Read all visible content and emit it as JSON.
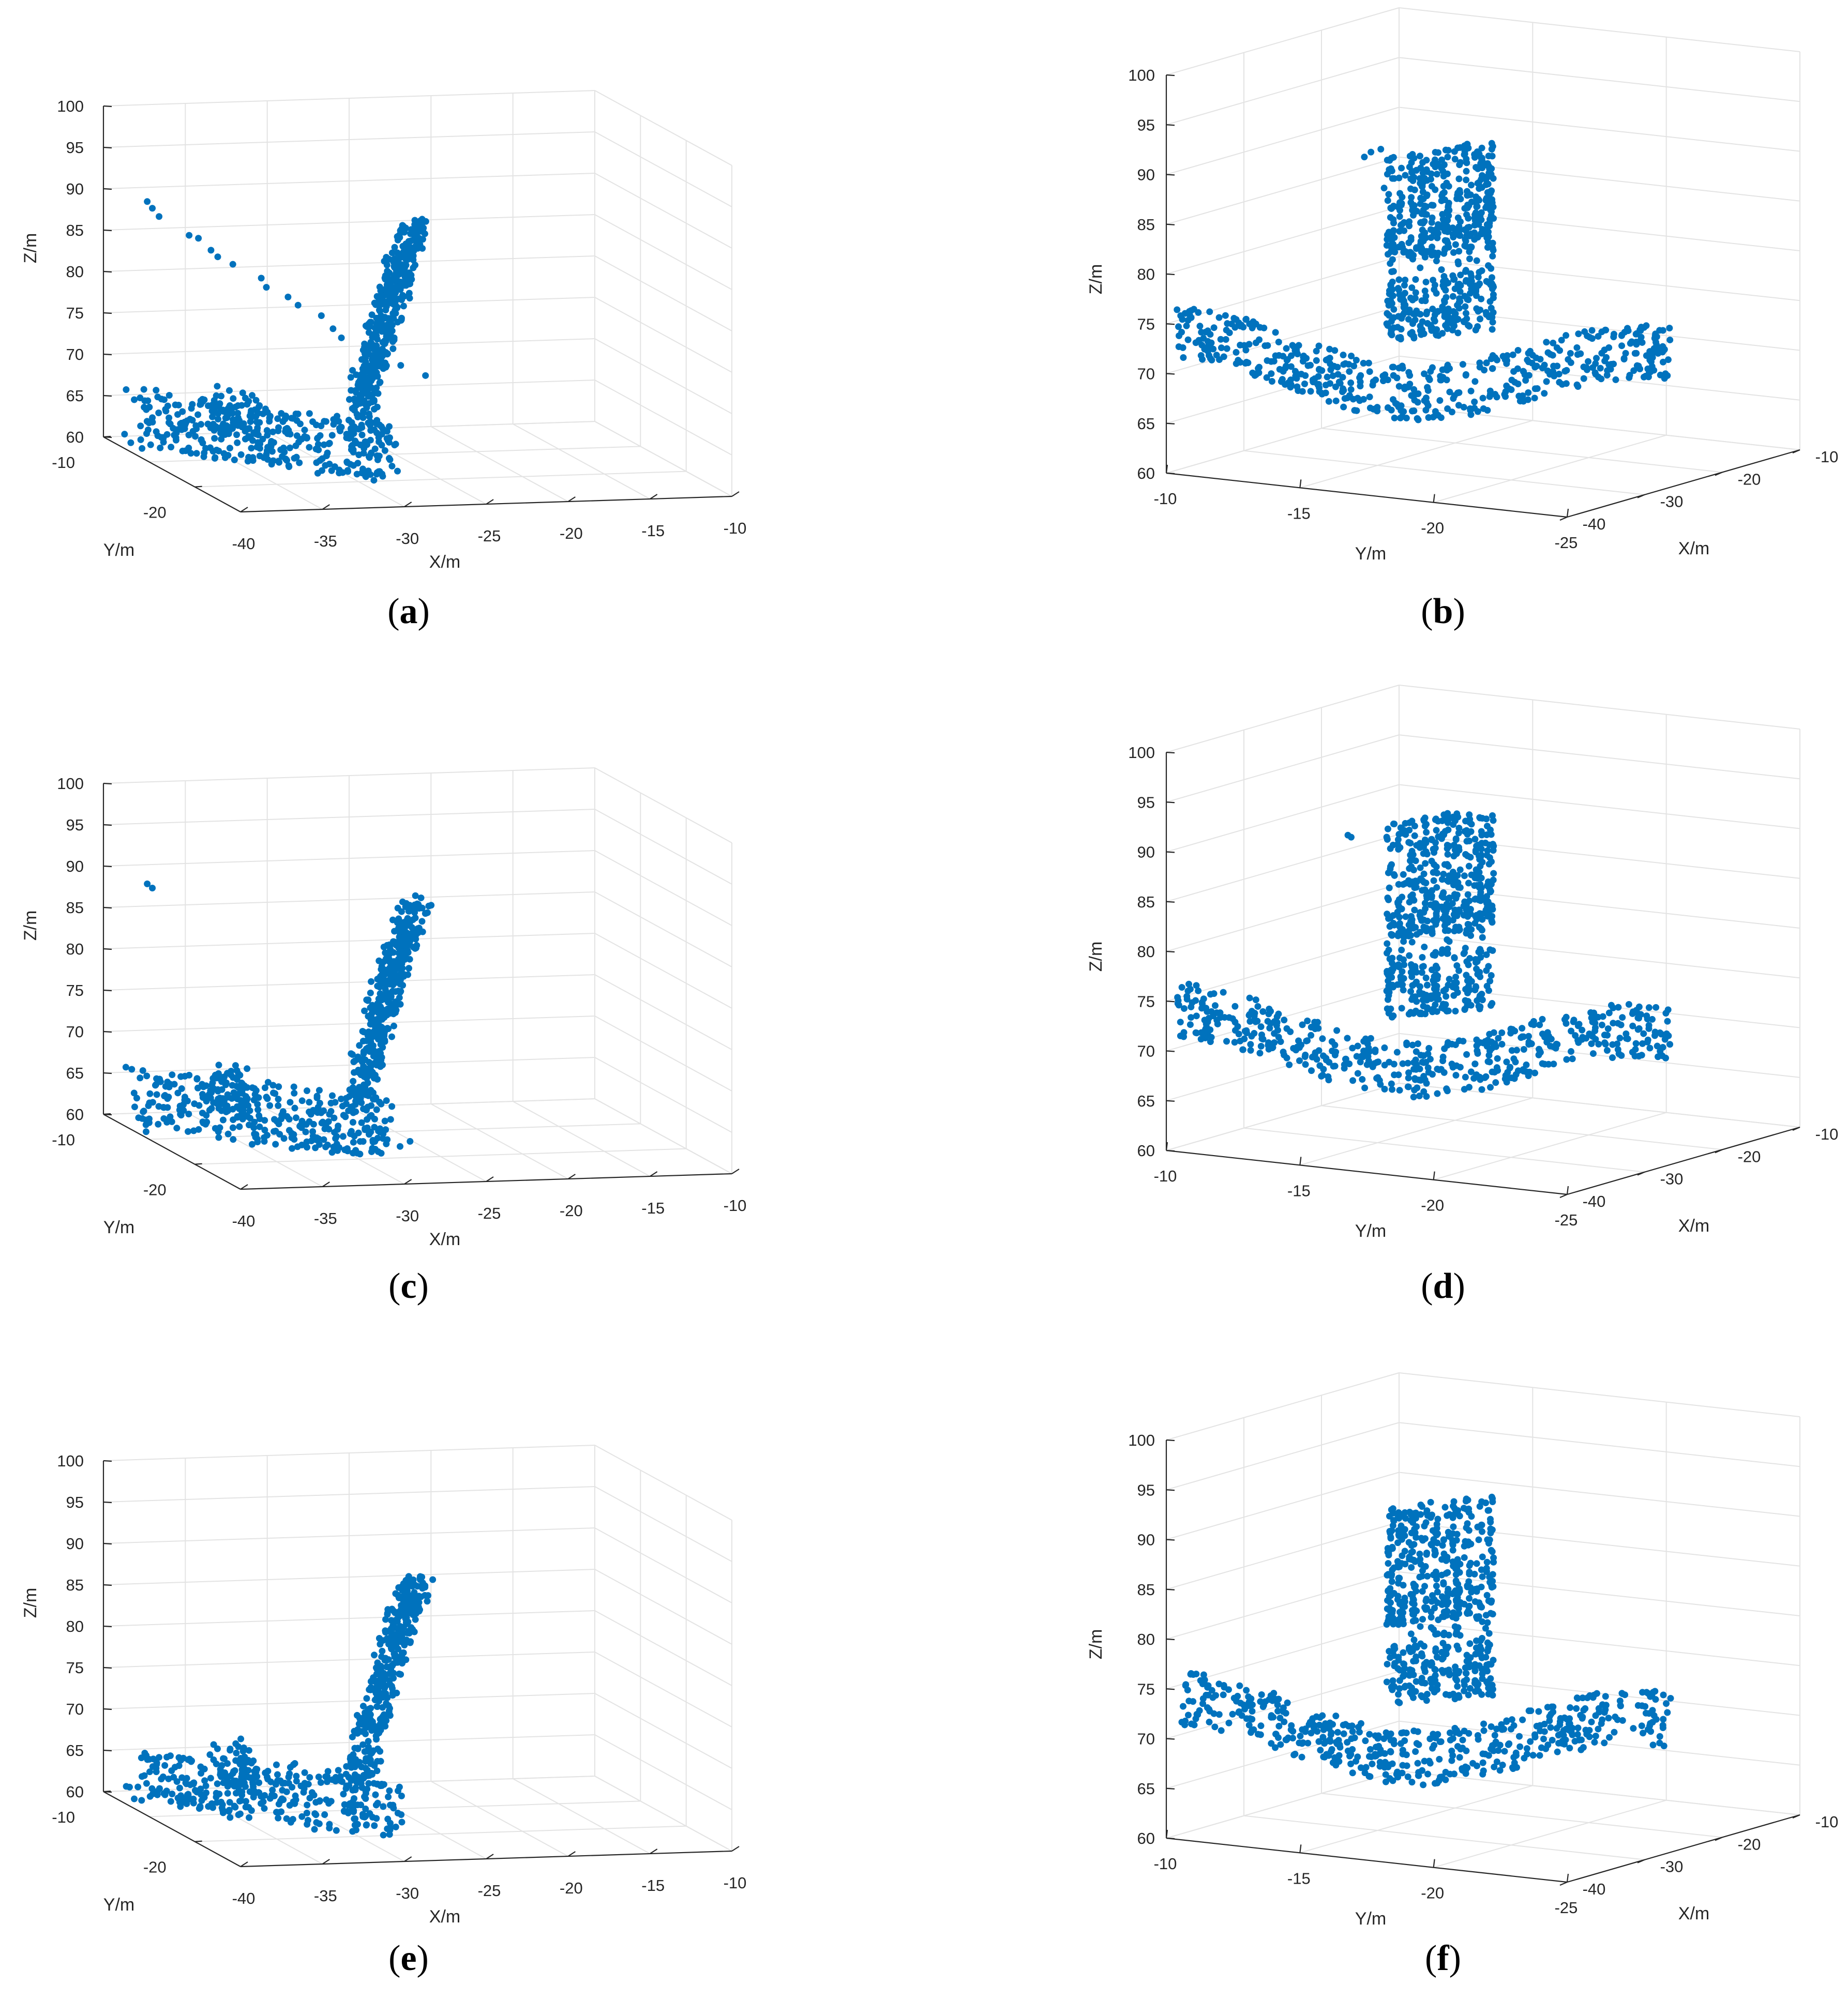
{
  "figure": {
    "panels": [
      {
        "letter": "a",
        "caption_prefix": "(",
        "caption_suffix": ")"
      },
      {
        "letter": "b",
        "caption_prefix": "(",
        "caption_suffix": ")"
      },
      {
        "letter": "c",
        "caption_prefix": "(",
        "caption_suffix": ")"
      },
      {
        "letter": "d",
        "caption_prefix": "(",
        "caption_suffix": ")"
      },
      {
        "letter": "e",
        "caption_prefix": "(",
        "caption_suffix": ")"
      },
      {
        "letter": "f",
        "caption_prefix": "(",
        "caption_suffix": ")"
      }
    ]
  },
  "colors": {
    "point": "#0072BD",
    "grid": "#e3e3e3",
    "axis": "#262626"
  },
  "chart_data": [
    {
      "panel": "a",
      "type": "scatter",
      "view": "oblique",
      "xlabel": "X/m",
      "ylabel": "Y/m",
      "zlabel": "Z/m",
      "xlim": [
        -40,
        -10
      ],
      "ylim": [
        -25,
        -10
      ],
      "zlim": [
        60,
        100
      ],
      "xticks": [
        "-40",
        "-35",
        "-30",
        "-25",
        "-20",
        "-15",
        "-10"
      ],
      "yticks": [
        "-20",
        "-10"
      ],
      "zticks": [
        "60",
        "65",
        "70",
        "75",
        "80",
        "85",
        "90",
        "95",
        "100"
      ],
      "grid": true,
      "series": [
        {
          "marker": "filled-circle",
          "clusters": [
            {
              "kind": "stem",
              "x": [
                -29,
                -22
              ],
              "y": [
                -18,
                -12
              ],
              "z": [
                64,
                86
              ],
              "count": 420
            },
            {
              "kind": "base",
              "x": [
                -40,
                -29
              ],
              "y": [
                -22,
                -14
              ],
              "z": [
                61,
                68
              ],
              "count": 340
            },
            {
              "kind": "branch",
              "x": [
                -38,
                -36
              ],
              "y": [
                -20,
                -18
              ],
              "z": [
                65,
                71
              ],
              "count": 60
            },
            {
              "kind": "outliers",
              "points": [
                {
                  "x": -39,
                  "y": -13,
                  "z": 90.2
                },
                {
                  "x": -38.8,
                  "y": -13.2,
                  "z": 89.5
                },
                {
                  "x": -38.5,
                  "y": -13.4,
                  "z": 88.6
                },
                {
                  "x": -37,
                  "y": -14,
                  "z": 86.6
                },
                {
                  "x": -36.6,
                  "y": -14.3,
                  "z": 86.4
                },
                {
                  "x": -36,
                  "y": -14.6,
                  "z": 85.1
                },
                {
                  "x": -35.7,
                  "y": -14.8,
                  "z": 84.4
                },
                {
                  "x": -35,
                  "y": -15.2,
                  "z": 83.7
                },
                {
                  "x": -33.6,
                  "y": -15.8,
                  "z": 82.3
                },
                {
                  "x": -33.4,
                  "y": -16,
                  "z": 81.3
                },
                {
                  "x": -32.3,
                  "y": -16.4,
                  "z": 80.3
                },
                {
                  "x": -31.8,
                  "y": -16.6,
                  "z": 79.4
                },
                {
                  "x": -30.6,
                  "y": -17,
                  "z": 78.3
                },
                {
                  "x": -30,
                  "y": -17.2,
                  "z": 76.8
                },
                {
                  "x": -29.6,
                  "y": -17.4,
                  "z": 75.8
                },
                {
                  "x": -27,
                  "y": -17.6,
                  "z": 74
                },
                {
                  "x": -26.2,
                  "y": -17.8,
                  "z": 72.5
                },
                {
                  "x": -24.8,
                  "y": -18,
                  "z": 71.3
                }
              ]
            }
          ]
        }
      ]
    },
    {
      "panel": "b",
      "type": "scatter",
      "view": "front",
      "xlabel": "X/m",
      "ylabel": "Y/m",
      "zlabel": "Z/m",
      "xlim": [
        -40,
        -10
      ],
      "ylim": [
        -25,
        -10
      ],
      "zlim": [
        60,
        100
      ],
      "xticks": [
        "-40",
        "-30",
        "-20",
        "-10"
      ],
      "yticks": [
        "-10",
        "-15",
        "-20",
        "-25"
      ],
      "zticks": [
        "60",
        "65",
        "70",
        "75",
        "80",
        "85",
        "90",
        "95",
        "100"
      ],
      "grid": true,
      "series": [
        {
          "marker": "filled-circle",
          "clusters": [
            {
              "kind": "column",
              "y": [
                -16.5,
                -19.5
              ],
              "z": [
                72,
                91
              ],
              "count": 640,
              "gap_z": [
                78,
                80
              ]
            },
            {
              "kind": "base",
              "y": [
                -10,
                -25
              ],
              "z": [
                65,
                74
              ],
              "count": 520
            },
            {
              "kind": "outliers",
              "points": [
                {
                  "y": -15.7,
                  "z": 90.4
                },
                {
                  "y": -15.9,
                  "z": 90.9
                },
                {
                  "y": -16.2,
                  "z": 91.2
                },
                {
                  "y": -16.4,
                  "z": 88.7
                },
                {
                  "y": -16.3,
                  "z": 87.3
                },
                {
                  "y": -16.5,
                  "z": 85.3
                },
                {
                  "y": -16.4,
                  "z": 82.6
                }
              ]
            }
          ]
        }
      ]
    },
    {
      "panel": "c",
      "type": "scatter",
      "view": "oblique",
      "xlabel": "X/m",
      "ylabel": "Y/m",
      "zlabel": "Z/m",
      "xlim": [
        -40,
        -10
      ],
      "ylim": [
        -25,
        -10
      ],
      "zlim": [
        60,
        100
      ],
      "xticks": [
        "-40",
        "-35",
        "-30",
        "-25",
        "-20",
        "-15",
        "-10"
      ],
      "yticks": [
        "-20",
        "-10"
      ],
      "zticks": [
        "60",
        "65",
        "70",
        "75",
        "80",
        "85",
        "90",
        "95",
        "100"
      ],
      "grid": true,
      "series": [
        {
          "marker": "filled-circle",
          "clusters": [
            {
              "kind": "stem",
              "x": [
                -29,
                -22
              ],
              "y": [
                -18,
                -12
              ],
              "z": [
                64,
                86
              ],
              "count": 400
            },
            {
              "kind": "base",
              "x": [
                -40,
                -29
              ],
              "y": [
                -22,
                -14
              ],
              "z": [
                61,
                68
              ],
              "count": 320
            },
            {
              "kind": "branch",
              "x": [
                -38,
                -36
              ],
              "y": [
                -20,
                -18
              ],
              "z": [
                65,
                71
              ],
              "count": 60
            },
            {
              "kind": "outliers",
              "points": [
                {
                  "x": -39,
                  "y": -13,
                  "z": 89.6
                },
                {
                  "x": -38.8,
                  "y": -13.2,
                  "z": 89.2
                }
              ]
            }
          ]
        }
      ]
    },
    {
      "panel": "d",
      "type": "scatter",
      "view": "front",
      "xlabel": "X/m",
      "ylabel": "Y/m",
      "zlabel": "Z/m",
      "xlim": [
        -40,
        -10
      ],
      "ylim": [
        -25,
        -10
      ],
      "zlim": [
        60,
        100
      ],
      "xticks": [
        "-40",
        "-30",
        "-20",
        "-10"
      ],
      "yticks": [
        "-10",
        "-15",
        "-20",
        "-25"
      ],
      "zticks": [
        "60",
        "65",
        "70",
        "75",
        "80",
        "85",
        "90",
        "95",
        "100"
      ],
      "grid": true,
      "series": [
        {
          "marker": "filled-circle",
          "clusters": [
            {
              "kind": "column",
              "y": [
                -16.5,
                -19.5
              ],
              "z": [
                72,
                92
              ],
              "count": 620,
              "gap_z": [
                78,
                80
              ]
            },
            {
              "kind": "base",
              "y": [
                -10,
                -25
              ],
              "z": [
                65,
                74
              ],
              "count": 500
            },
            {
              "kind": "outliers",
              "points": [
                {
                  "y": -15.2,
                  "z": 90.3
                },
                {
                  "y": -15.3,
                  "z": 90.1
                }
              ]
            }
          ]
        }
      ]
    },
    {
      "panel": "e",
      "type": "scatter",
      "view": "oblique",
      "xlabel": "X/m",
      "ylabel": "Y/m",
      "zlabel": "Z/m",
      "xlim": [
        -40,
        -10
      ],
      "ylim": [
        -25,
        -10
      ],
      "zlim": [
        60,
        100
      ],
      "xticks": [
        "-40",
        "-35",
        "-30",
        "-25",
        "-20",
        "-15",
        "-10"
      ],
      "yticks": [
        "-20",
        "-10"
      ],
      "zticks": [
        "60",
        "65",
        "70",
        "75",
        "80",
        "85",
        "90",
        "95",
        "100"
      ],
      "grid": true,
      "series": [
        {
          "marker": "filled-circle",
          "clusters": [
            {
              "kind": "stem",
              "x": [
                -29,
                -22
              ],
              "y": [
                -18,
                -12
              ],
              "z": [
                64,
                86
              ],
              "count": 380
            },
            {
              "kind": "base",
              "x": [
                -40,
                -29
              ],
              "y": [
                -22,
                -14
              ],
              "z": [
                61,
                68
              ],
              "count": 320
            },
            {
              "kind": "branch",
              "x": [
                -38,
                -36
              ],
              "y": [
                -20,
                -18
              ],
              "z": [
                65,
                71
              ],
              "count": 60
            }
          ]
        }
      ]
    },
    {
      "panel": "f",
      "type": "scatter",
      "view": "front",
      "xlabel": "X/m",
      "ylabel": "Y/m",
      "zlabel": "Z/m",
      "xlim": [
        -40,
        -10
      ],
      "ylim": [
        -25,
        -10
      ],
      "zlim": [
        60,
        100
      ],
      "xticks": [
        "-40",
        "-30",
        "-20",
        "-10"
      ],
      "yticks": [
        "-10",
        "-15",
        "-20",
        "-25"
      ],
      "zticks": [
        "60",
        "65",
        "70",
        "75",
        "80",
        "85",
        "90",
        "95",
        "100"
      ],
      "grid": true,
      "series": [
        {
          "marker": "filled-circle",
          "clusters": [
            {
              "kind": "column",
              "y": [
                -16.5,
                -19.5
              ],
              "z": [
                72,
                92
              ],
              "count": 600,
              "gap_z": [
                78,
                80
              ]
            },
            {
              "kind": "base",
              "y": [
                -10,
                -25
              ],
              "z": [
                65,
                74
              ],
              "count": 500
            }
          ]
        }
      ]
    }
  ]
}
